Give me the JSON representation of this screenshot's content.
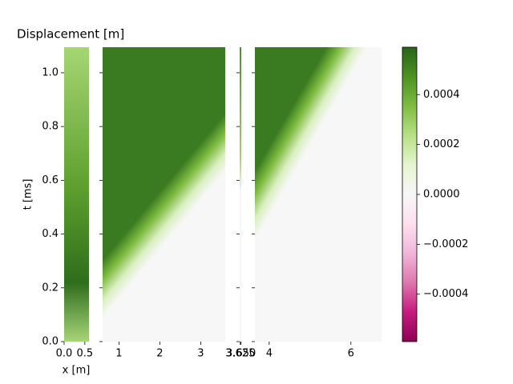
{
  "chart_data": {
    "type": "heatmap",
    "title": "Displacement [m]",
    "xlabel": "x [m]",
    "ylabel": "t [ms]",
    "ylim": [
      0,
      1.095
    ],
    "yticks": [
      {
        "value": 0,
        "label": "0.0"
      },
      0.2,
      0.4,
      0.6,
      0.8,
      {
        "value": 1,
        "label": "1.0"
      }
    ],
    "panels": [
      {
        "xlim": [
          0,
          0.6
        ],
        "xticks": [
          {
            "value": 0,
            "label": "0.0"
          },
          0.5
        ]
      },
      {
        "xlim": [
          0.6,
          3.6
        ],
        "xticks": [
          1,
          2,
          3
        ]
      },
      {
        "xlim": [
          3.6,
          3.66
        ],
        "xticks": [
          3.625,
          {
            "value": 3.65,
            "label": "3.650"
          }
        ]
      },
      {
        "xlim": [
          3.65,
          6.75
        ],
        "xticks": [
          4,
          6
        ]
      }
    ],
    "colorbar": {
      "clim": [
        -0.00059,
        0.00059
      ],
      "ticks": [
        {
          "value": -0.0004,
          "label": "−0.0004"
        },
        {
          "value": -0.0002,
          "label": "−0.0002"
        },
        {
          "value": 0,
          "label": "0.0000"
        },
        {
          "value": 0.0002,
          "label": "0.0002"
        },
        {
          "value": 0.0004,
          "label": "0.0004"
        }
      ],
      "colors": [
        "#8e0152",
        "#c51b7d",
        "#de77ae",
        "#f1b6da",
        "#fde0ef",
        "#f7f7f7",
        "#e6f5d0",
        "#b8e186",
        "#7fbc41",
        "#4d9221",
        "#276419"
      ]
    }
  }
}
